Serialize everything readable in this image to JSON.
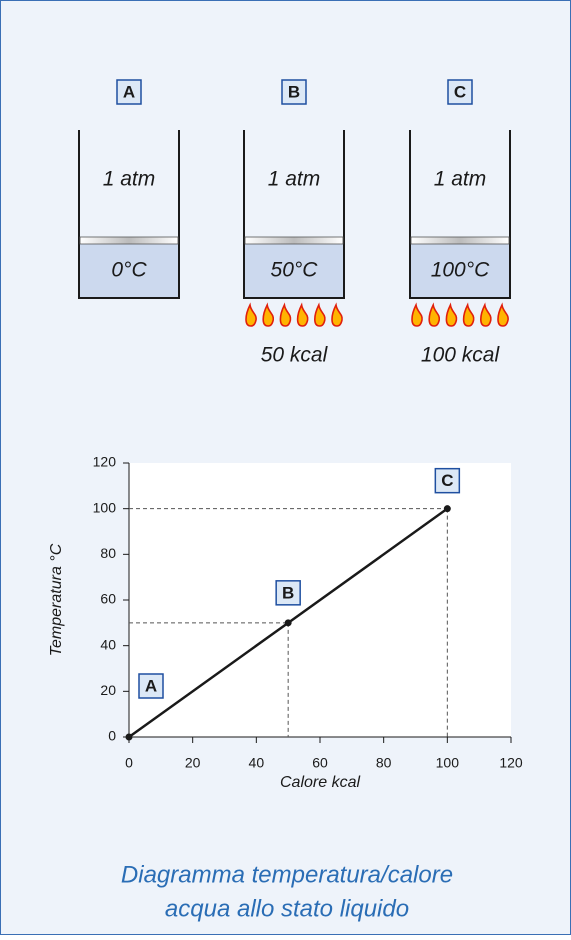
{
  "containers": [
    {
      "label": "A",
      "pressure": "1 atm",
      "temperature": "0°C"
    },
    {
      "label": "B",
      "pressure": "1 atm",
      "temperature": "50°C",
      "heat": "50 kcal"
    },
    {
      "label": "C",
      "pressure": "1 atm",
      "temperature": "100°C",
      "heat": "100 kcal"
    }
  ],
  "chart_data": {
    "type": "line",
    "x": [
      0,
      50,
      100
    ],
    "values": [
      0,
      50,
      100
    ],
    "point_labels": [
      "A",
      "B",
      "C"
    ],
    "color": "#1a1a1a",
    "xlabel": "Calore kcal",
    "ylabel": "Temperatura °C",
    "xlim": [
      0,
      120
    ],
    "ylim": [
      0,
      120
    ],
    "xticks": [
      0,
      20,
      40,
      60,
      80,
      100,
      120
    ],
    "yticks": [
      0,
      20,
      40,
      60,
      80,
      100,
      120
    ]
  },
  "caption": [
    "Diagramma temperatura/calore",
    "acqua allo stato liquido"
  ]
}
